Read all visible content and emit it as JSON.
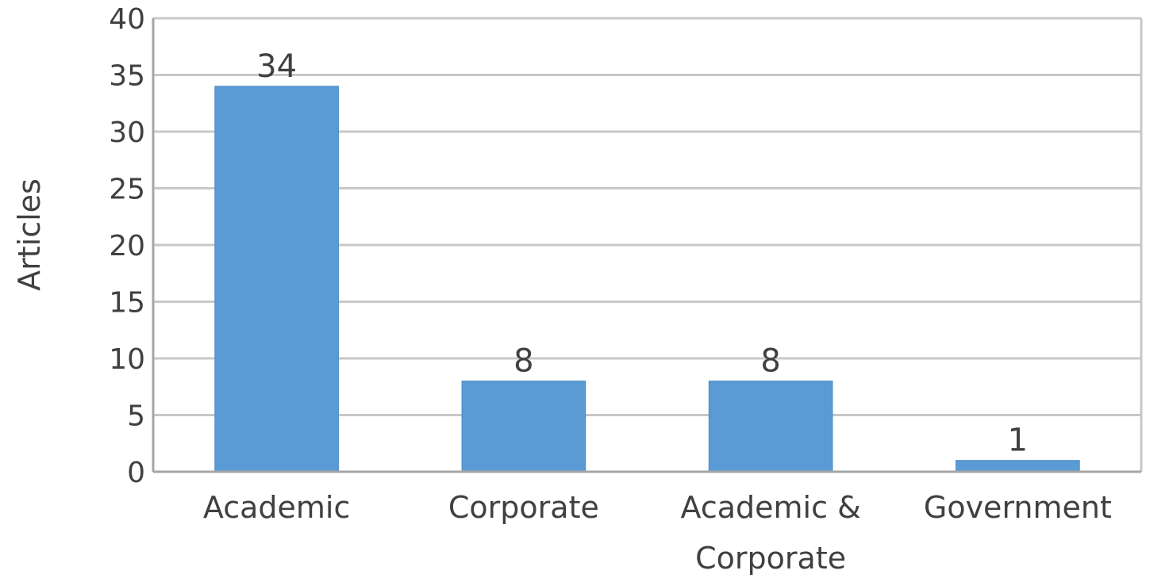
{
  "chart_data": {
    "type": "bar",
    "categories": [
      "Academic",
      "Corporate",
      "Academic & Corporate",
      "Government"
    ],
    "category_lines": [
      [
        "Academic"
      ],
      [
        "Corporate"
      ],
      [
        "Academic &",
        "Corporate"
      ],
      [
        "Government"
      ]
    ],
    "values": [
      34,
      8,
      8,
      1
    ],
    "data_labels": [
      "34",
      "8",
      "8",
      "1"
    ],
    "title": "",
    "xlabel": "",
    "ylabel": "Articles",
    "ylim": [
      0,
      40
    ],
    "yticks": [
      0,
      5,
      10,
      15,
      20,
      25,
      30,
      35,
      40
    ],
    "grid": true,
    "legend": "none",
    "colors": {
      "bar": "#5b9bd5",
      "bar_edge": "#4a8ac4",
      "grid": "#c8c8c8",
      "axis": "#a6a6a6",
      "text": "#404040"
    }
  }
}
